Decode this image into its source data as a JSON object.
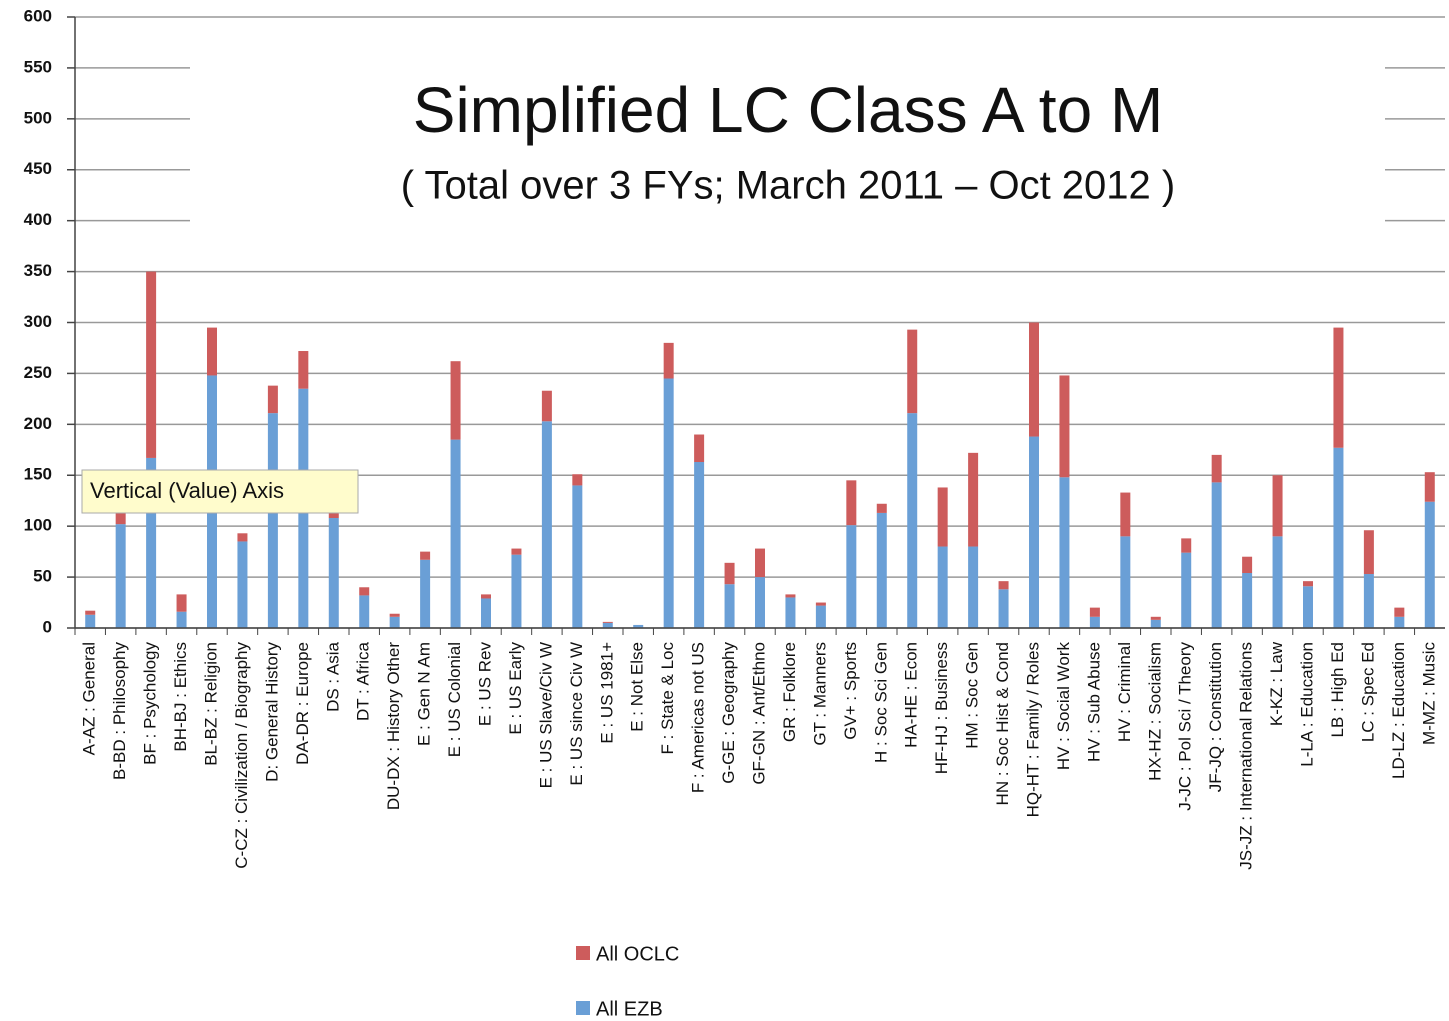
{
  "chart_data": {
    "type": "stacked_bar",
    "title": "Simplified LC Class A to M",
    "subtitle": "( Total over 3 FYs; March 2011 – Oct 2012 )",
    "tooltip": "Vertical (Value) Axis",
    "categories": [
      "A-AZ : General",
      "B-BD : Philosophy",
      "BF : Psychology",
      "BH-BJ : Ethics",
      "BL-BZ : Religion",
      "C-CZ : Civilization / Biography",
      "D: General History",
      "DA-DR : Europe",
      "DS : Asia",
      "DT : Africa",
      "DU-DX : History Other",
      "E : Gen N Am",
      "E : US Colonial",
      "E : US Rev",
      "E : US Early",
      "E : US Slave/Civ W",
      "E : US since Civ W",
      "E : US 1981+",
      "E : Not Else",
      "F : State & Loc",
      "F : Americas not US",
      "G-GE : Geography",
      "GF-GN : Ant/Ethno",
      "GR : Folklore",
      "GT : Manners",
      "GV+ : Sports",
      "H : Soc Sci Gen",
      "HA-HE : Econ",
      "HF-HJ : Business",
      "HM : Soc Gen",
      "HN : Soc Hist & Cond",
      "HQ-HT : Family / Roles",
      "HV : Social Work",
      "HV : Sub Abuse",
      "HV : Criminal",
      "HX-HZ : Socialism",
      "J-JC : Pol Sci / Theory",
      "JF-JQ : Constitution",
      "JS-JZ : International Relations",
      "K-KZ : Law",
      "L-LA : Education",
      "LB : High Ed",
      "LC : Spec Ed",
      "LD-LZ : Education",
      "M-MZ : Music"
    ],
    "series": [
      {
        "name": "All EZB",
        "color": "#6a9fd6",
        "values": [
          13,
          102,
          167,
          16,
          248,
          85,
          211,
          235,
          108,
          32,
          11,
          67,
          185,
          29,
          72,
          203,
          140,
          5,
          3,
          245,
          163,
          43,
          50,
          30,
          22,
          101,
          113,
          211,
          80,
          80,
          38,
          188,
          148,
          11,
          90,
          8,
          74,
          143,
          54,
          90,
          41,
          177,
          53,
          11,
          124
        ]
      },
      {
        "name": "All OCLC",
        "color": "#cd5c5c",
        "values": [
          4,
          18,
          183,
          17,
          47,
          8,
          27,
          37,
          12,
          8,
          3,
          8,
          77,
          4,
          6,
          30,
          11,
          1,
          0,
          35,
          27,
          21,
          28,
          3,
          3,
          44,
          9,
          82,
          58,
          92,
          8,
          112,
          100,
          9,
          43,
          3,
          14,
          27,
          16,
          60,
          5,
          118,
          43,
          9,
          29
        ]
      }
    ],
    "ylim": [
      0,
      600
    ],
    "yticks": [
      0,
      50,
      100,
      150,
      200,
      250,
      300,
      350,
      400,
      450,
      500,
      550,
      600
    ],
    "grid": true
  }
}
